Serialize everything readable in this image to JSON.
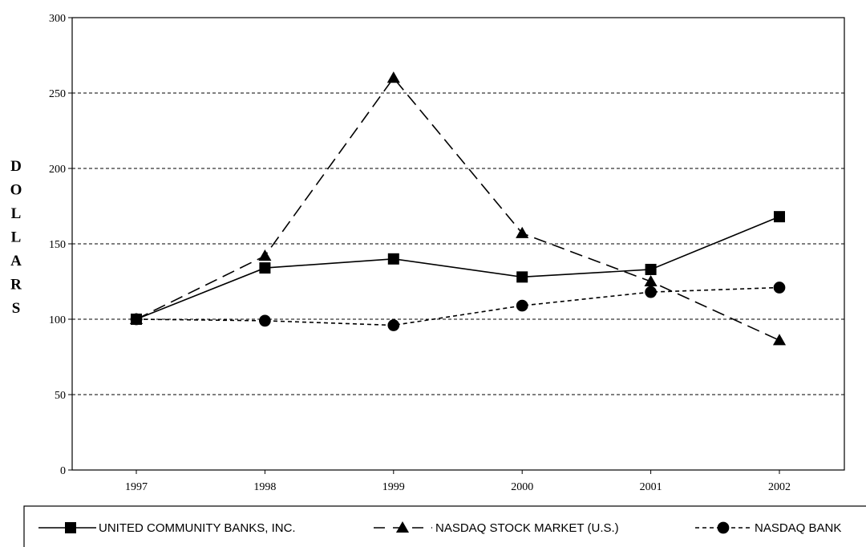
{
  "chart_data": {
    "type": "line",
    "title": "",
    "xlabel": "",
    "ylabel": "DOLLARS",
    "ylim": [
      0,
      300
    ],
    "yticks": [
      "0",
      "50",
      "100",
      "150",
      "200",
      "250",
      "300"
    ],
    "categories": [
      "1997",
      "1998",
      "1999",
      "2000",
      "2001",
      "2002"
    ],
    "grid": "horizontal dashed",
    "legend_position": "bottom",
    "series": [
      {
        "name": "UNITED COMMUNITY BANKS, INC.",
        "marker": "square",
        "line": "solid",
        "values": [
          100,
          134,
          140,
          128,
          133,
          168
        ]
      },
      {
        "name": "NASDAQ STOCK MARKET (U.S.)",
        "marker": "triangle",
        "line": "long-dash",
        "values": [
          100,
          142,
          260,
          157,
          125,
          86
        ]
      },
      {
        "name": "NASDAQ BANK",
        "marker": "circle",
        "line": "short-dash",
        "values": [
          100,
          99,
          96,
          109,
          118,
          121
        ]
      }
    ],
    "colors": {
      "ink": "#000000",
      "background": "#ffffff"
    }
  }
}
